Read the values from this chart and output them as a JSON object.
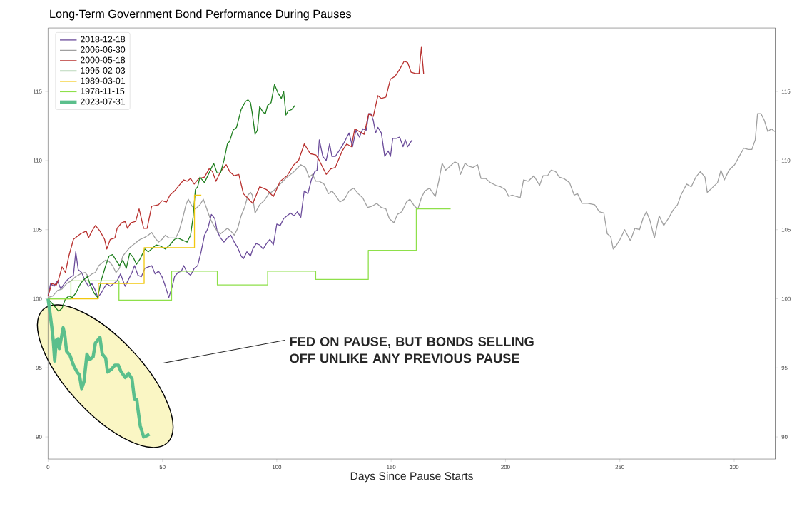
{
  "chart_data": {
    "type": "line",
    "title": "Long-Term Government Bond Performance During Pauses",
    "xlabel": "Days Since Pause Starts",
    "xlim": [
      0,
      318
    ],
    "xticks": [
      0,
      50,
      100,
      150,
      200,
      250,
      300
    ],
    "ylim": [
      88.4,
      119.6
    ],
    "yticks": [
      90,
      95,
      100,
      105,
      110,
      115
    ],
    "y2lim": [
      88.4,
      119.6
    ],
    "y2ticks": [
      90,
      95,
      100,
      105,
      110,
      115
    ],
    "legend": "top left",
    "marker": "none",
    "line_style": "solid",
    "annotations": [
      "FED ON PAUSE, BUT BONDS SELLING OFF UNLIKE ANY PREVIOUS PAUSE"
    ],
    "series": [
      {
        "name": "2018-12-18",
        "color": "#6b4c9a",
        "x": [
          0,
          1.1,
          2.6,
          4.1,
          5.6,
          7.1,
          8.6,
          10.1,
          11.1,
          12.1,
          13.2,
          14.7,
          16.2,
          17.7,
          19.2,
          20.7,
          21.7,
          23.2,
          24.2,
          25.7,
          27.2,
          28.7,
          30.2,
          31.7,
          33.7,
          35.2,
          36.7,
          37.8,
          39.3,
          40.8,
          42.3,
          43.8,
          45.3,
          46.8,
          48.3,
          49.8,
          51.3,
          52.8,
          54.3,
          55.3,
          56.8,
          58.3,
          59.3,
          60.8,
          62.3,
          63.9,
          65.4,
          66.9,
          68.4,
          69.9,
          71.4,
          72.9,
          73.9,
          75.4,
          76.9,
          78.4,
          79.9,
          81.4,
          82.9,
          84.4,
          85.4,
          86.9,
          88.5,
          89.5,
          91.0,
          92.5,
          94.0,
          95.5,
          97.0,
          98.5,
          100.0,
          101.5,
          103.0,
          104.5,
          106.0,
          107.5,
          109.0,
          110.5,
          112.0,
          113.6,
          115.1,
          116.6,
          117.6,
          118.6,
          120.1,
          121.6,
          123.1,
          124.1,
          125.6,
          127.6,
          129.1,
          131.6,
          133.1,
          134.6,
          136.1,
          137.6,
          139.1,
          140.2,
          141.2,
          142.2,
          143.2,
          144.2,
          145.7,
          147.2,
          148.7,
          149.7,
          150.7,
          152.2,
          153.7,
          155.2,
          156.2,
          157.2,
          159.2
        ],
        "values": [
          100.2,
          101.1,
          100.9,
          101.3,
          100.7,
          101.1,
          101.4,
          101.6,
          101.7,
          103.4,
          102.1,
          101.9,
          101.3,
          100.9,
          101.1,
          100.6,
          100.1,
          100.4,
          100.7,
          101.1,
          100.9,
          101.1,
          101.3,
          101.8,
          100.9,
          101.4,
          101.9,
          102.4,
          101.7,
          101.6,
          102.2,
          102.3,
          102.4,
          101.8,
          102.0,
          101.6,
          100.9,
          100.1,
          100.9,
          101.6,
          101.9,
          102.0,
          102.4,
          101.9,
          101.7,
          102.2,
          102.4,
          103.4,
          104.6,
          105.1,
          106.1,
          105.8,
          104.9,
          104.4,
          104.1,
          104.4,
          104.6,
          104.1,
          103.7,
          103.1,
          102.9,
          103.4,
          103.1,
          103.6,
          104.0,
          103.9,
          103.6,
          104.0,
          104.3,
          103.9,
          105.4,
          105.3,
          105.8,
          106.0,
          106.2,
          106.0,
          106.3,
          105.9,
          107.8,
          107.6,
          108.6,
          109.2,
          109.3,
          111.5,
          110.3,
          110.0,
          111.2,
          110.3,
          110.3,
          110.8,
          111.2,
          112.0,
          111.0,
          112.2,
          111.7,
          112.3,
          112.2,
          113.4,
          113.4,
          112.9,
          112.0,
          112.4,
          112.0,
          110.3,
          110.7,
          110.3,
          111.6,
          111.6,
          111.7,
          111.0,
          111.5,
          111.0,
          111.5
        ]
      },
      {
        "name": "2006-06-30",
        "color": "#a0a0a0",
        "x": [
          0,
          2.1,
          4.1,
          6.1,
          8.1,
          10.1,
          12.1,
          14.2,
          16.2,
          17.7,
          19.2,
          20.7,
          22.2,
          23.7,
          25.2,
          26.7,
          28.2,
          29.7,
          31.2,
          32.7,
          34.2,
          35.7,
          37.2,
          38.7,
          40.3,
          41.8,
          43.8,
          45.3,
          46.8,
          48.3,
          49.8,
          51.3,
          52.8,
          54.3,
          55.8,
          57.3,
          58.8,
          60.3,
          61.3,
          62.9,
          64.4,
          66.4,
          67.9,
          69.4,
          70.9,
          72.4,
          73.9,
          75.4,
          76.9,
          78.4,
          79.9,
          81.4,
          82.9,
          84.4,
          85.9,
          87.4,
          88.5,
          89.3,
          90.5,
          92.5,
          94.5,
          96.5,
          98.5,
          101.5,
          104.5,
          107.5,
          110.5,
          112.5,
          114.1,
          115.6,
          117.1,
          118.6,
          120.6,
          122.6,
          124.1,
          125.6,
          127.6,
          129.6,
          131.6,
          133.6,
          135.6,
          137.6,
          139.7,
          141.7,
          143.7,
          145.7,
          147.7,
          149.2,
          151.2,
          152.7,
          154.7,
          156.7,
          158.2,
          160.2,
          161.7,
          163.2,
          164.7,
          166.8,
          169.3,
          170.8,
          172.3,
          173.8,
          175.8,
          177.8,
          179.3,
          180.3,
          182.3,
          183.8,
          185.8,
          187.8,
          189.3,
          191.3,
          193.4,
          195.9,
          197.9,
          199.9,
          201.4,
          202.9,
          204.9,
          206.4,
          207.9,
          209.9,
          212.4,
          214.9,
          216.4,
          218.4,
          219.9,
          221.9,
          223.5,
          225.5,
          228.0,
          230.0,
          231.5,
          233.5,
          236.0,
          239.0,
          241.0,
          243.0,
          244.5,
          246.0,
          247.1,
          248.6,
          250.1,
          252.1,
          254.6,
          256.6,
          258.6,
          260.1,
          261.6,
          263.1,
          265.1,
          267.2,
          269.2,
          271.2,
          273.2,
          275.2,
          276.7,
          279.2,
          281.2,
          283.2,
          285.2,
          287.2,
          288.2,
          290.2,
          292.7,
          294.2,
          295.7,
          297.7,
          300.2,
          302.2,
          304.2,
          306.2,
          307.7,
          309.2,
          310.2,
          311.7,
          313.2,
          314.7,
          316.2,
          317.8
        ],
        "values": [
          100.1,
          100.2,
          100.6,
          100.7,
          101.1,
          101.3,
          101.6,
          101.8,
          101.9,
          101.6,
          101.8,
          101.9,
          102.4,
          102.6,
          102.8,
          102.7,
          102.4,
          101.9,
          102.2,
          103.1,
          103.4,
          103.7,
          103.9,
          104.1,
          104.3,
          104.4,
          104.6,
          104.8,
          104.4,
          104.1,
          104.3,
          104.6,
          104.4,
          104.4,
          104.4,
          104.9,
          105.8,
          106.8,
          107.2,
          106.7,
          106.5,
          106.8,
          107.2,
          106.5,
          105.8,
          105.3,
          104.9,
          104.7,
          104.9,
          105.1,
          104.9,
          104.6,
          105.1,
          106.0,
          106.6,
          107.5,
          107.7,
          107.5,
          106.2,
          106.8,
          107.1,
          107.6,
          107.8,
          108.3,
          108.8,
          109.2,
          109.7,
          109.5,
          108.8,
          109.0,
          108.5,
          108.5,
          108.3,
          107.6,
          107.8,
          107.5,
          107.0,
          107.2,
          107.8,
          108.0,
          107.6,
          107.3,
          106.6,
          106.7,
          106.9,
          106.6,
          106.5,
          105.8,
          105.5,
          106.1,
          106.3,
          107.0,
          107.2,
          106.7,
          106.5,
          107.3,
          107.8,
          108.0,
          107.4,
          108.5,
          109.8,
          109.3,
          109.6,
          109.9,
          109.8,
          109.0,
          109.8,
          109.6,
          109.5,
          109.7,
          108.7,
          108.7,
          108.4,
          108.2,
          108.1,
          107.9,
          107.4,
          107.5,
          107.4,
          107.3,
          108.6,
          108.5,
          108.9,
          108.2,
          108.9,
          108.9,
          109.3,
          109.2,
          108.8,
          108.7,
          108.4,
          107.5,
          107.6,
          106.9,
          106.9,
          106.8,
          106.3,
          106.2,
          104.7,
          104.5,
          103.6,
          103.9,
          104.3,
          105.0,
          104.2,
          105.1,
          105.0,
          105.8,
          106.3,
          105.7,
          104.4,
          106.0,
          105.3,
          105.8,
          106.4,
          106.8,
          107.5,
          108.3,
          108.1,
          108.8,
          109.2,
          108.8,
          107.7,
          108.0,
          108.4,
          109.3,
          108.6,
          109.3,
          109.7,
          110.3,
          110.9,
          110.8,
          110.8,
          111.5,
          113.4,
          113.4,
          112.9,
          112.1,
          112.3,
          112.1
        ]
      },
      {
        "name": "2000-05-18",
        "color": "#b8312f",
        "x": [
          0,
          1.6,
          3.6,
          4.6,
          6.1,
          7.6,
          9.1,
          11.1,
          14.2,
          16.7,
          17.7,
          19.2,
          20.7,
          22.7,
          24.7,
          25.7,
          27.2,
          29.2,
          30.2,
          32.2,
          33.7,
          34.7,
          36.2,
          38.3,
          39.8,
          41.8,
          43.3,
          45.3,
          48.3,
          49.8,
          51.8,
          53.3,
          55.3,
          56.8,
          59.3,
          60.8,
          62.3,
          63.9,
          65.9,
          68.4,
          70.4,
          71.9,
          73.4,
          75.4,
          77.9,
          79.4,
          81.4,
          83.4,
          85.4,
          89.5,
          92.5,
          95.5,
          98.5,
          101.5,
          104.5,
          107.5,
          109.5,
          112.0,
          114.6,
          117.1,
          118.6,
          121.6,
          123.6,
          125.6,
          128.6,
          130.6,
          132.6,
          134.1,
          136.1,
          138.2,
          140.2,
          142.2,
          144.2,
          145.7,
          147.7,
          149.7,
          151.7,
          153.7,
          155.7,
          157.2,
          158.7,
          160.7,
          162.2,
          163.2,
          164.2
        ],
        "values": [
          100.2,
          101.1,
          101.0,
          101.4,
          102.3,
          101.9,
          103.1,
          104.3,
          104.7,
          104.9,
          104.4,
          104.9,
          105.3,
          104.9,
          104.3,
          103.6,
          104.3,
          104.4,
          105.1,
          105.5,
          105.6,
          105.1,
          105.5,
          105.6,
          106.5,
          105.1,
          105.1,
          106.7,
          106.8,
          107.1,
          107.0,
          107.5,
          107.8,
          108.1,
          108.6,
          108.5,
          108.7,
          108.3,
          108.7,
          108.8,
          109.4,
          109.2,
          108.5,
          109.2,
          109.7,
          109.2,
          108.9,
          109.0,
          107.6,
          106.9,
          108.1,
          107.9,
          107.4,
          108.5,
          108.9,
          109.7,
          110.0,
          111.2,
          110.5,
          110.4,
          110.0,
          109.0,
          109.4,
          109.5,
          110.7,
          111.2,
          111.0,
          112.3,
          112.1,
          111.9,
          113.4,
          113.2,
          114.7,
          114.5,
          114.6,
          115.9,
          116.1,
          116.6,
          117.2,
          117.1,
          116.4,
          116.3,
          116.3,
          118.2,
          116.3
        ]
      },
      {
        "name": "1995-02-03",
        "color": "#1f7f1f",
        "x": [
          0,
          2.1,
          4.6,
          6.1,
          7.6,
          9.1,
          10.6,
          12.1,
          14.2,
          15.7,
          17.2,
          18.7,
          20.2,
          21.7,
          23.2,
          25.2,
          26.7,
          28.2,
          29.7,
          31.2,
          32.7,
          34.2,
          35.7,
          37.2,
          38.7,
          40.3,
          42.3,
          43.8,
          45.3,
          47.3,
          49.3,
          51.3,
          53.3,
          55.3,
          56.8,
          59.3,
          60.8,
          62.3,
          63.4,
          64.4,
          65.4,
          66.4,
          68.4,
          70.4,
          72.4,
          73.9,
          75.4,
          76.9,
          78.4,
          79.4,
          80.9,
          82.4,
          84.4,
          86.4,
          87.4,
          88.5,
          89.3,
          90.5,
          91.5,
          92.5,
          94.0,
          95.0,
          96.0,
          97.5,
          99.0,
          100.5,
          102.0,
          103.0,
          104.0,
          105.0,
          106.5,
          108.0
        ],
        "values": [
          100,
          99.6,
          99.1,
          99.3,
          100.0,
          100.2,
          100.1,
          100.4,
          101.1,
          101.4,
          101.6,
          100.9,
          100.4,
          100.1,
          101.3,
          102.4,
          103.1,
          103.2,
          102.8,
          102.4,
          102.8,
          102.2,
          103.3,
          103.0,
          102.5,
          102.9,
          103.6,
          103.4,
          103.6,
          103.9,
          103.8,
          103.6,
          103.9,
          104.3,
          104.4,
          104.2,
          104.1,
          104.6,
          105.9,
          107.9,
          108.1,
          108.8,
          108.4,
          109.1,
          109.8,
          109.1,
          109.1,
          110.0,
          111.2,
          111.4,
          112.2,
          112.4,
          113.7,
          114.3,
          114.4,
          114.2,
          113.4,
          111.9,
          112.2,
          113.9,
          113.5,
          113.4,
          114.0,
          114.2,
          115.5,
          114.9,
          114.5,
          115.0,
          113.3,
          113.6,
          113.7,
          114.0
        ]
      },
      {
        "name": "1989-03-01",
        "color": "#f2c80f",
        "type": "step",
        "x": [
          0,
          22,
          42,
          64,
          67
        ],
        "values": [
          100,
          101.1,
          103.7,
          107.5,
          107.5
        ]
      },
      {
        "name": "1978-11-15",
        "color": "#8ee04a",
        "type": "step",
        "x": [
          0,
          10,
          31,
          54,
          74,
          96,
          117,
          140,
          161,
          176
        ],
        "values": [
          100,
          101.3,
          99.9,
          102.0,
          101.0,
          102.0,
          101.4,
          103.5,
          106.5,
          106.5
        ]
      },
      {
        "name": "2023-07-31",
        "color": "#5bbf8c",
        "x": [
          0,
          0.9,
          1.6,
          2.3,
          2.9,
          3.6,
          4.3,
          4.9,
          5.6,
          6.6,
          7.3,
          8.1,
          9.6,
          11.1,
          12.7,
          13.7,
          14.7,
          15.7,
          17.0,
          18.2,
          19.7,
          20.7,
          22.7,
          23.7,
          25.2,
          26.0,
          27.7,
          29.2,
          30.7,
          31.7,
          33.7,
          35.2,
          36.7,
          37.8,
          38.8,
          39.3,
          40.3,
          41.8,
          43.3,
          44.3
        ],
        "values": [
          100.0,
          98.9,
          98.0,
          96.9,
          95.5,
          97.0,
          97.1,
          96.4,
          97.0,
          97.9,
          97.4,
          96.2,
          95.9,
          95.2,
          94.7,
          94.5,
          93.5,
          94.0,
          96.0,
          95.6,
          95.8,
          96.8,
          97.2,
          96.0,
          95.7,
          94.7,
          94.9,
          95.2,
          95.2,
          94.8,
          94.3,
          94.6,
          94.2,
          92.7,
          92.7,
          92.0,
          90.8,
          90.0,
          90.1,
          90.2
        ]
      }
    ]
  }
}
